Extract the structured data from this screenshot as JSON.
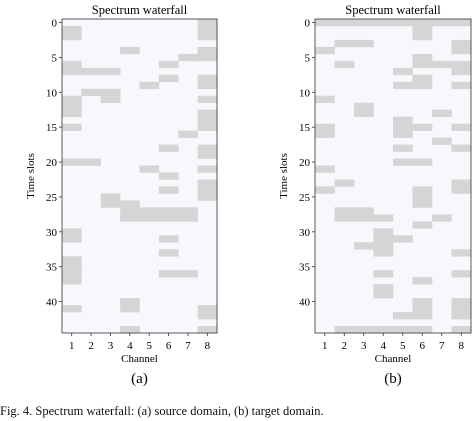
{
  "caption": "Fig. 4.   Spectrum waterfall: (a) source domain, (b) target domain.",
  "colors": {
    "occupied": "#d5d5d5",
    "free": "#f7f7fc",
    "frame": "#333333"
  },
  "chart_data": [
    {
      "type": "heatmap",
      "panel_label": "(a)",
      "title": "Spectrum waterfall",
      "xlabel": "Channel",
      "ylabel": "Time slots",
      "x_ticks": [
        "1",
        "2",
        "3",
        "4",
        "5",
        "6",
        "7",
        "8"
      ],
      "y_ticks": [
        "0",
        "5",
        "10",
        "15",
        "20",
        "25",
        "30",
        "35",
        "40"
      ],
      "n_rows": 45,
      "n_cols": 8,
      "legend": "none",
      "grid": false,
      "occupancy": [
        "00000001",
        "10000001",
        "10000001",
        "00000000",
        "00010001",
        "00000011",
        "10000100",
        "11100000",
        "00000101",
        "00001001",
        "01100000",
        "10100001",
        "10000000",
        "10000001",
        "00000001",
        "10000001",
        "00000010",
        "00000000",
        "00000101",
        "00000001",
        "11000000",
        "00001001",
        "00000100",
        "00000001",
        "00000101",
        "00100001",
        "00110000",
        "00011110",
        "00011110",
        "00000000",
        "10000000",
        "10000100",
        "00000000",
        "00000100",
        "10000000",
        "10000000",
        "10000110",
        "10000000",
        "00000000",
        "00000000",
        "00010000",
        "10010001",
        "00000001",
        "00000000",
        "00010001"
      ]
    },
    {
      "type": "heatmap",
      "panel_label": "(b)",
      "title": "Spectrum waterfall",
      "xlabel": "Channel",
      "ylabel": "Time slots",
      "x_ticks": [
        "1",
        "2",
        "3",
        "4",
        "5",
        "6",
        "7",
        "8"
      ],
      "y_ticks": [
        "0",
        "5",
        "10",
        "15",
        "20",
        "25",
        "30",
        "35",
        "40"
      ],
      "n_rows": 45,
      "n_cols": 8,
      "legend": "none",
      "grid": false,
      "occupancy": [
        "11111111",
        "00000100",
        "00000100",
        "01100001",
        "10000001",
        "00000100",
        "01000111",
        "00001001",
        "00000100",
        "00001101",
        "00000000",
        "10000000",
        "00100000",
        "00100010",
        "00001000",
        "10001101",
        "10001000",
        "00000010",
        "00001001",
        "00000000",
        "00001100",
        "10000000",
        "00000000",
        "01000001",
        "10000101",
        "00000100",
        "00000100",
        "01100000",
        "01110010",
        "00000100",
        "00010000",
        "00011000",
        "00110000",
        "00010001",
        "00000000",
        "00000000",
        "00010001",
        "00000100",
        "00010000",
        "00010000",
        "00000101",
        "00000101",
        "00001101",
        "00000000",
        "01111101"
      ]
    }
  ]
}
